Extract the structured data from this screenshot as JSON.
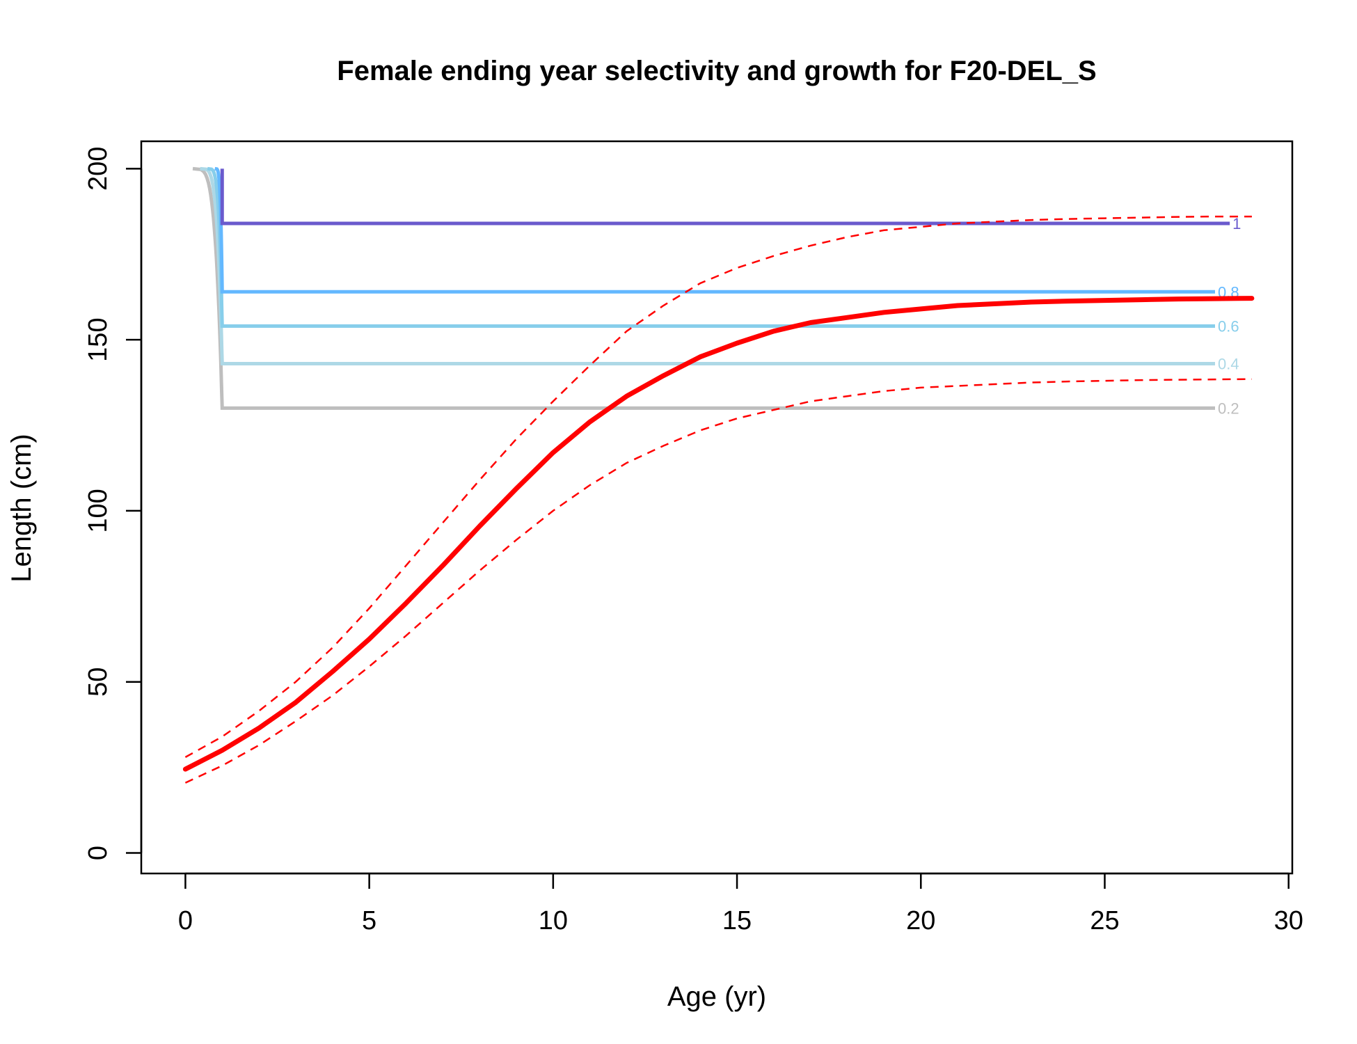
{
  "chart_data": {
    "type": "line",
    "title": "Female ending year selectivity and growth for F20-DEL_S",
    "xlabel": "Age (yr)",
    "ylabel": "Length (cm)",
    "xlim": [
      -1.2,
      30.1
    ],
    "ylim": [
      -6,
      208
    ],
    "xticks": [
      0,
      5,
      10,
      15,
      20,
      25,
      30
    ],
    "xtick_labels": [
      "0",
      "5",
      "10",
      "15",
      "20",
      "25",
      "30"
    ],
    "yticks": [
      0,
      50,
      100,
      150,
      200
    ],
    "ytick_labels": [
      "0",
      "50",
      "100",
      "150",
      "200"
    ],
    "growth": {
      "color": "#ff0000",
      "age": [
        0,
        1,
        2,
        3,
        4,
        5,
        6,
        7,
        8,
        9,
        10,
        11,
        12,
        13,
        14,
        15,
        16,
        17,
        18,
        19,
        20,
        21,
        22,
        23,
        24,
        25,
        26,
        27,
        28,
        29
      ],
      "mean": [
        24.5,
        30,
        36.5,
        44,
        53,
        62.5,
        73,
        84,
        95.5,
        106.5,
        117,
        126,
        133.5,
        139.5,
        145,
        149,
        152.5,
        155,
        156.5,
        158,
        159,
        160,
        160.5,
        161,
        161.3,
        161.5,
        161.7,
        161.9,
        162,
        162.1
      ],
      "upper": [
        28,
        34,
        41.5,
        50,
        60,
        71.5,
        84,
        96.5,
        109,
        121,
        132,
        142.5,
        152.5,
        160,
        166.5,
        171,
        174.5,
        177.5,
        180,
        182,
        183,
        184,
        184.5,
        185,
        185.3,
        185.5,
        185.7,
        185.9,
        186,
        186
      ],
      "lower": [
        20.5,
        25.5,
        31.5,
        38.5,
        46,
        54.5,
        63.5,
        73,
        82.5,
        91.5,
        100,
        107.5,
        114,
        119,
        123.5,
        127,
        129.5,
        132,
        133.5,
        135,
        136,
        136.5,
        137,
        137.5,
        137.8,
        138,
        138.2,
        138.3,
        138.4,
        138.5
      ]
    },
    "contours": [
      {
        "label": "0.2",
        "color": "#bebebe",
        "x_start": 0.2,
        "x_corner": 1.0,
        "x_end": 28.0,
        "level": 130
      },
      {
        "label": "0.4",
        "color": "#add8e6",
        "x_start": 0.4,
        "x_corner": 1.0,
        "x_end": 28.0,
        "level": 143
      },
      {
        "label": "0.6",
        "color": "#87ceeb",
        "x_start": 0.6,
        "x_corner": 1.0,
        "x_end": 28.0,
        "level": 154
      },
      {
        "label": "0.8",
        "color": "#63b8ff",
        "x_start": 0.8,
        "x_corner": 1.0,
        "x_end": 28.0,
        "level": 164
      },
      {
        "label": "1",
        "color": "#6a5acd",
        "x_start": 1.0,
        "x_corner": 1.0,
        "x_end": 28.4,
        "level": 184
      }
    ],
    "contour_top": 200,
    "grid": false,
    "legend": "none"
  }
}
